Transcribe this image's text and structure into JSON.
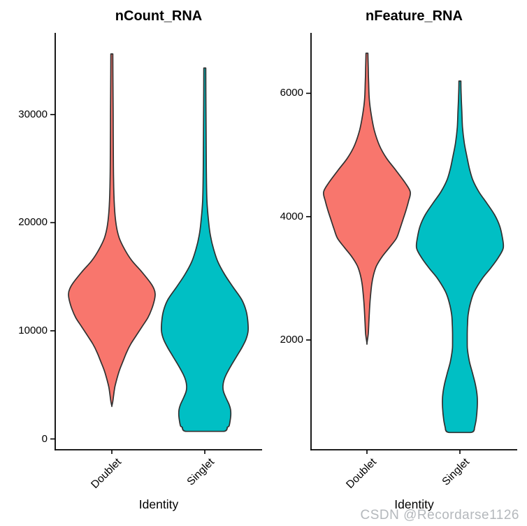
{
  "watermark": "CSDN @Recordarse1126",
  "colors": {
    "doublet_fill": "#F8766D",
    "singlet_fill": "#00BFC4",
    "violin_outline": "#303030",
    "axis": "#000000",
    "text": "#000000",
    "watermark": "#b4b8bc"
  },
  "chart_data": [
    {
      "type": "violin",
      "title": "nCount_RNA",
      "xlabel": "Identity",
      "ylabel": "",
      "categories": [
        "Doublet",
        "Singlet"
      ],
      "ylim": [
        -1000,
        37550
      ],
      "yticks": [
        0,
        10000,
        20000,
        30000
      ],
      "ytick_labels": [
        "0",
        "10000",
        "20000",
        "30000"
      ],
      "grid": false,
      "legend": "none",
      "series": [
        {
          "name": "Doublet",
          "color_key": "doublet_fill",
          "min": 3050,
          "max": 35600,
          "peak": 13400,
          "flat_bottom": false,
          "profile": [
            [
              35600,
              0.022
            ],
            [
              33000,
              0.026
            ],
            [
              30000,
              0.03
            ],
            [
              27000,
              0.034
            ],
            [
              24000,
              0.04
            ],
            [
              21500,
              0.06
            ],
            [
              19800,
              0.1
            ],
            [
              18600,
              0.17
            ],
            [
              17500,
              0.3
            ],
            [
              16500,
              0.46
            ],
            [
              15500,
              0.68
            ],
            [
              14500,
              0.88
            ],
            [
              13900,
              0.97
            ],
            [
              13400,
              1.0
            ],
            [
              12800,
              0.98
            ],
            [
              12000,
              0.92
            ],
            [
              11200,
              0.83
            ],
            [
              10400,
              0.7
            ],
            [
              9600,
              0.57
            ],
            [
              8800,
              0.44
            ],
            [
              8000,
              0.34
            ],
            [
              7200,
              0.26
            ],
            [
              6400,
              0.18
            ],
            [
              5600,
              0.12
            ],
            [
              4800,
              0.07
            ],
            [
              4000,
              0.04
            ],
            [
              3400,
              0.02
            ],
            [
              3050,
              0.0
            ]
          ]
        },
        {
          "name": "Singlet",
          "color_key": "singlet_fill",
          "min": 700,
          "max": 34300,
          "peak": 10000,
          "flat_bottom": true,
          "profile": [
            [
              34300,
              0.022
            ],
            [
              31000,
              0.026
            ],
            [
              28000,
              0.03
            ],
            [
              25000,
              0.035
            ],
            [
              22000,
              0.05
            ],
            [
              20000,
              0.09
            ],
            [
              18800,
              0.13
            ],
            [
              17600,
              0.2
            ],
            [
              16400,
              0.3
            ],
            [
              15200,
              0.46
            ],
            [
              14000,
              0.66
            ],
            [
              12900,
              0.85
            ],
            [
              11900,
              0.95
            ],
            [
              11000,
              0.99
            ],
            [
              10000,
              1.0
            ],
            [
              9200,
              0.95
            ],
            [
              8400,
              0.85
            ],
            [
              7600,
              0.73
            ],
            [
              6800,
              0.61
            ],
            [
              6000,
              0.5
            ],
            [
              5400,
              0.44
            ],
            [
              4900,
              0.42
            ],
            [
              4400,
              0.43
            ],
            [
              3800,
              0.49
            ],
            [
              3200,
              0.56
            ],
            [
              2700,
              0.595
            ],
            [
              2200,
              0.6
            ],
            [
              1700,
              0.585
            ],
            [
              1200,
              0.56
            ],
            [
              700,
              0.52
            ]
          ]
        }
      ]
    },
    {
      "type": "violin",
      "title": "nFeature_RNA",
      "xlabel": "Identity",
      "ylabel": "",
      "categories": [
        "Doublet",
        "Singlet"
      ],
      "ylim": [
        220,
        6980
      ],
      "yticks": [
        2000,
        4000,
        6000
      ],
      "ytick_labels": [
        "2000",
        "4000",
        "6000"
      ],
      "grid": false,
      "legend": "none",
      "series": [
        {
          "name": "Doublet",
          "color_key": "doublet_fill",
          "min": 1950,
          "max": 6650,
          "peak": 4400,
          "flat_bottom": false,
          "profile": [
            [
              6650,
              0.022
            ],
            [
              6400,
              0.03
            ],
            [
              6150,
              0.04
            ],
            [
              5900,
              0.055
            ],
            [
              5650,
              0.1
            ],
            [
              5400,
              0.17
            ],
            [
              5150,
              0.29
            ],
            [
              4950,
              0.45
            ],
            [
              4750,
              0.67
            ],
            [
              4550,
              0.88
            ],
            [
              4400,
              1.0
            ],
            [
              4250,
              0.96
            ],
            [
              4100,
              0.9
            ],
            [
              3950,
              0.83
            ],
            [
              3800,
              0.76
            ],
            [
              3650,
              0.68
            ],
            [
              3500,
              0.52
            ],
            [
              3350,
              0.35
            ],
            [
              3200,
              0.22
            ],
            [
              3050,
              0.15
            ],
            [
              2900,
              0.11
            ],
            [
              2700,
              0.08
            ],
            [
              2500,
              0.06
            ],
            [
              2300,
              0.045
            ],
            [
              2100,
              0.03
            ],
            [
              1950,
              0.0
            ]
          ]
        },
        {
          "name": "Singlet",
          "color_key": "singlet_fill",
          "min": 500,
          "max": 6200,
          "peak": 3490,
          "flat_bottom": true,
          "profile": [
            [
              6200,
              0.022
            ],
            [
              5950,
              0.03
            ],
            [
              5700,
              0.045
            ],
            [
              5450,
              0.06
            ],
            [
              5200,
              0.1
            ],
            [
              4980,
              0.16
            ],
            [
              4780,
              0.22
            ],
            [
              4590,
              0.3
            ],
            [
              4400,
              0.44
            ],
            [
              4220,
              0.62
            ],
            [
              4030,
              0.8
            ],
            [
              3845,
              0.92
            ],
            [
              3660,
              0.98
            ],
            [
              3490,
              1.0
            ],
            [
              3330,
              0.88
            ],
            [
              3165,
              0.71
            ],
            [
              3000,
              0.52
            ],
            [
              2780,
              0.33
            ],
            [
              2590,
              0.24
            ],
            [
              2410,
              0.19
            ],
            [
              2250,
              0.175
            ],
            [
              2100,
              0.17
            ],
            [
              1960,
              0.17
            ],
            [
              1840,
              0.175
            ],
            [
              1650,
              0.22
            ],
            [
              1465,
              0.29
            ],
            [
              1270,
              0.36
            ],
            [
              1080,
              0.4
            ],
            [
              900,
              0.4
            ],
            [
              710,
              0.375
            ],
            [
              500,
              0.335
            ]
          ]
        }
      ]
    }
  ]
}
